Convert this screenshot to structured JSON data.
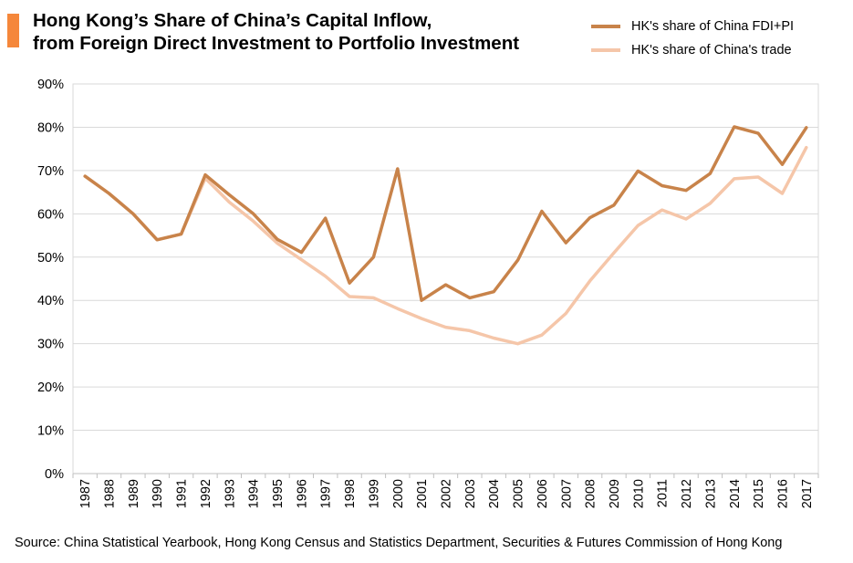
{
  "header": {
    "title_line1": "Hong Kong’s Share of China’s Capital Inflow,",
    "title_line2": "from Foreign Direct Investment to Portfolio Investment",
    "accent_color": "#f5873b"
  },
  "legend": {
    "items": [
      {
        "label": "HK's share of China FDI+PI",
        "color": "#c8834a"
      },
      {
        "label": "HK's share of China's trade",
        "color": "#f5c6a9"
      }
    ]
  },
  "footer": {
    "source": "Source: China Statistical Yearbook, Hong Kong Census and Statistics Department, Securities & Futures Commission of Hong Kong"
  },
  "chart_data": {
    "type": "line",
    "title": "Hong Kong’s Share of China’s Capital Inflow, from Foreign Direct Investment to Portfolio Investment",
    "xlabel": "",
    "ylabel": "",
    "ylim": [
      0,
      90
    ],
    "yticks": [
      "0%",
      "10%",
      "20%",
      "30%",
      "40%",
      "50%",
      "60%",
      "70%",
      "80%",
      "90%"
    ],
    "grid": "horizontal",
    "legend_position": "top-right",
    "categories": [
      "1987",
      "1988",
      "1989",
      "1990",
      "1991",
      "1992",
      "1993",
      "1994",
      "1995",
      "1996",
      "1997",
      "1998",
      "1999",
      "2000",
      "2001",
      "2002",
      "2003",
      "2004",
      "2005",
      "2006",
      "2007",
      "2008",
      "2009",
      "2010",
      "2011",
      "2012",
      "2013",
      "2014",
      "2015",
      "2016",
      "2017"
    ],
    "series": [
      {
        "name": "HK's share of China FDI+PI",
        "color": "#c8834a",
        "values": [
          68.7,
          64.7,
          60.0,
          54.0,
          55.3,
          69.0,
          64.4,
          60.0,
          54.1,
          51.1,
          59.0,
          44.0,
          50.0,
          70.4,
          40.0,
          43.6,
          40.6,
          42.0,
          49.3,
          60.6,
          53.3,
          59.1,
          62.0,
          69.9,
          66.5,
          65.4,
          69.3,
          80.1,
          78.6,
          71.4,
          79.9
        ]
      },
      {
        "name": "HK's share of China's trade",
        "color": "#f5c6a9",
        "values": [
          68.7,
          64.7,
          60.0,
          54.0,
          55.3,
          68.2,
          62.7,
          58.3,
          53.2,
          49.4,
          45.6,
          40.9,
          40.6,
          38.1,
          35.8,
          33.8,
          33.0,
          31.3,
          30.0,
          32.0,
          37.0,
          44.5,
          51.0,
          57.3,
          60.9,
          58.8,
          62.4,
          68.1,
          68.5,
          64.7,
          75.3
        ]
      }
    ]
  }
}
